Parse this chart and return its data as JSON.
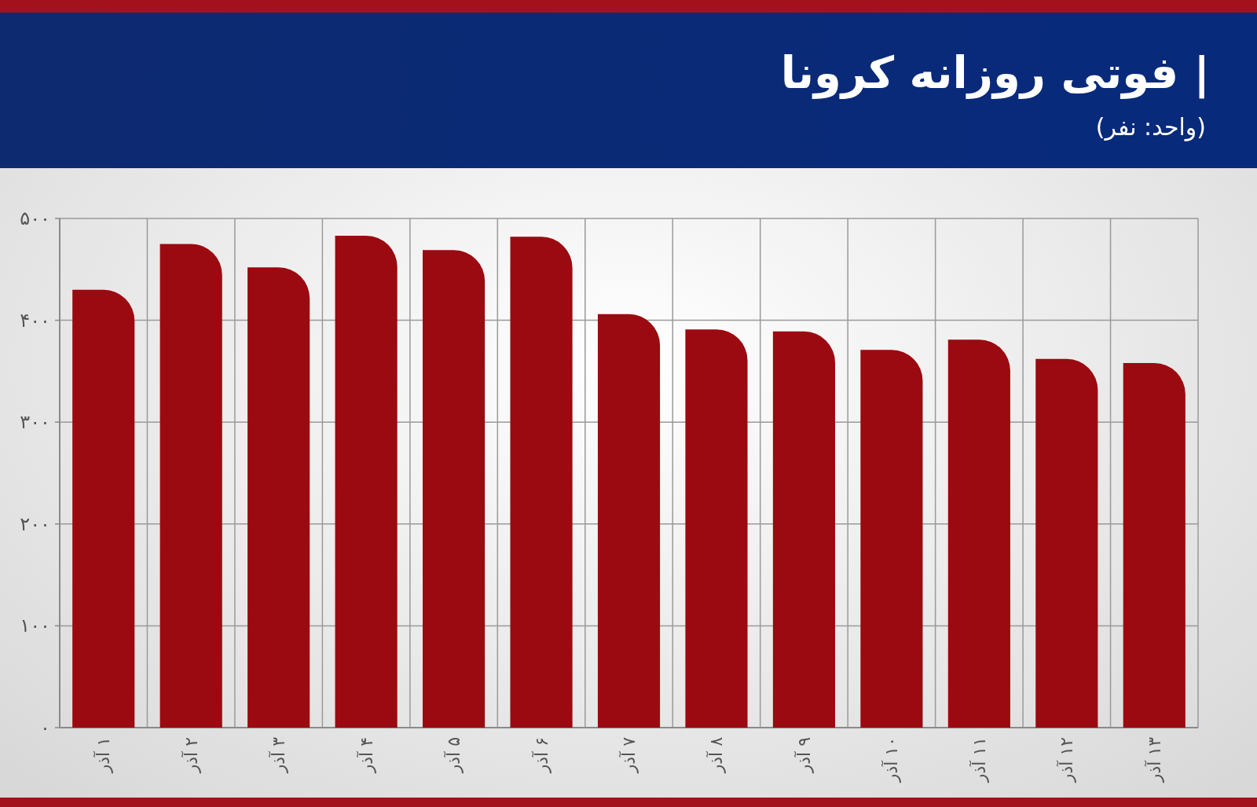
{
  "chart_data": {
    "type": "bar",
    "title": "| فوتی روزانه کرونا",
    "subtitle": "(واحد: نفر)",
    "categories": [
      "۱ آذر",
      "۲ آذر",
      "۳ آذر",
      "۴ آذر",
      "۵ آذر",
      "۶ آذر",
      "۷ آذر",
      "۸ آذر",
      "۹ آذر",
      "۱۰ آذر",
      "۱۱ آذر",
      "۱۲ آذر",
      "۱۳ آذر"
    ],
    "values": [
      430,
      475,
      452,
      483,
      469,
      482,
      406,
      391,
      389,
      371,
      381,
      362,
      358
    ],
    "color": "#9b0a10",
    "ylim": [
      0,
      500
    ],
    "yticks": [
      {
        "value": 0,
        "label": "۰"
      },
      {
        "value": 100,
        "label": "۱۰۰"
      },
      {
        "value": 200,
        "label": "۲۰۰"
      },
      {
        "value": 300,
        "label": "۳۰۰"
      },
      {
        "value": 400,
        "label": "۴۰۰"
      },
      {
        "value": 500,
        "label": "۵۰۰"
      }
    ],
    "grid": true
  }
}
